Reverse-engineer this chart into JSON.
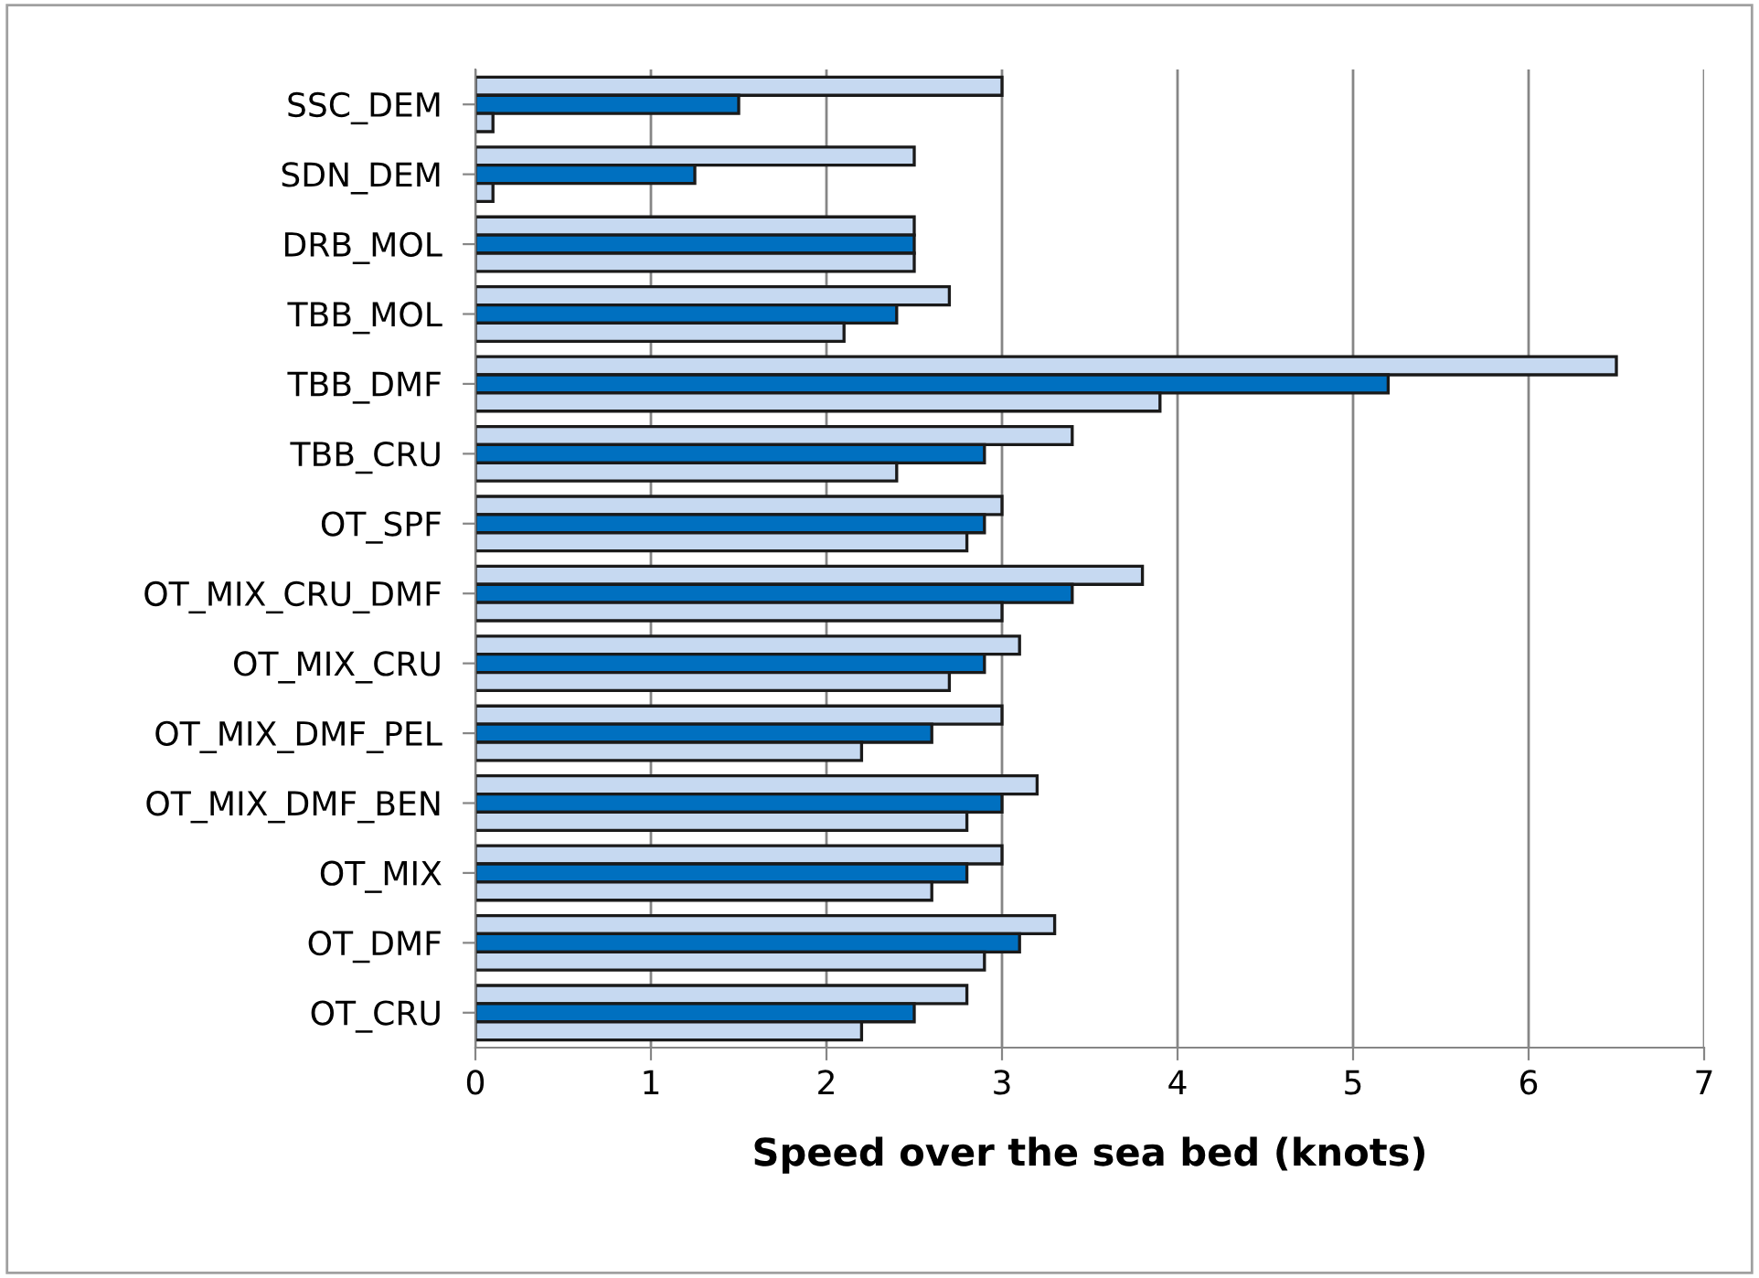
{
  "chart_data": {
    "type": "bar",
    "orientation": "horizontal",
    "xlabel": "Speed over the sea bed (knots)",
    "categories": [
      "SSC_DEM",
      "SDN_DEM",
      "DRB_MOL",
      "TBB_MOL",
      "TBB_DMF",
      "TBB_CRU",
      "OT_SPF",
      "OT_MIX_CRU_DMF",
      "OT_MIX_CRU",
      "OT_MIX_DMF_PEL",
      "OT_MIX_DMF_BEN",
      "OT_MIX",
      "OT_DMF",
      "OT_CRU"
    ],
    "series": [
      {
        "color": "#c6d9f1",
        "values": [
          3.0,
          2.5,
          2.5,
          2.7,
          6.5,
          3.4,
          3.0,
          3.8,
          3.1,
          3.0,
          3.2,
          3.0,
          3.3,
          2.8
        ]
      },
      {
        "color": "#0070c0",
        "values": [
          1.5,
          1.25,
          2.5,
          2.4,
          5.2,
          2.9,
          2.9,
          3.4,
          2.9,
          2.6,
          3.0,
          2.8,
          3.1,
          2.5
        ]
      },
      {
        "color": "#c6d9f1",
        "values": [
          0.1,
          0.1,
          2.5,
          2.1,
          3.9,
          2.4,
          2.8,
          3.0,
          2.7,
          2.2,
          2.8,
          2.6,
          2.9,
          2.2
        ]
      }
    ],
    "xlim": [
      0,
      7
    ],
    "xticks": [
      0,
      1,
      2,
      3,
      4,
      5,
      6,
      7
    ],
    "grid": "x",
    "legend": false
  }
}
